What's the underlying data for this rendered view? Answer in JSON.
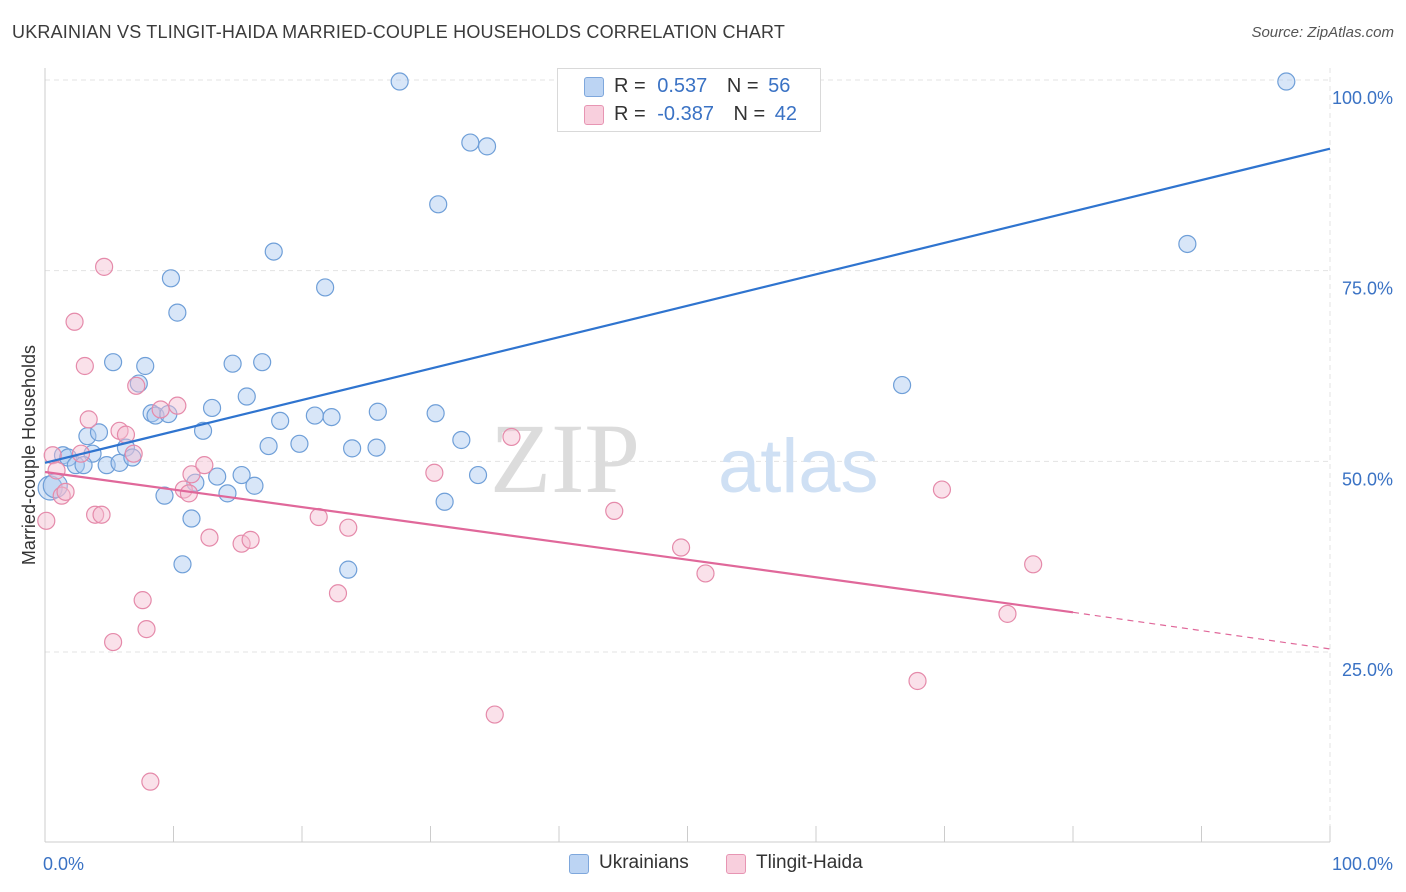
{
  "header": {
    "title": "UKRAINIAN VS TLINGIT-HAIDA MARRIED-COUPLE HOUSEHOLDS CORRELATION CHART",
    "source": "Source: ZipAtlas.com"
  },
  "watermark": {
    "part1": "ZIP",
    "part2": "atlas"
  },
  "colors": {
    "ukrainians_fill": "#a9c8f0",
    "ukrainians_stroke": "#6f9fd8",
    "ukrainians_line": "#2f74cf",
    "tlingit_fill": "#f4bcd0",
    "tlingit_stroke": "#e58aaa",
    "tlingit_line": "#e0689a",
    "axis_label": "#3a72c4",
    "grid": "#e3e3e3"
  },
  "legend": {
    "rows": [
      {
        "r_label": "R =",
        "r_value": "0.537",
        "n_label": "N =",
        "n_value": "56"
      },
      {
        "r_label": "R =",
        "r_value": "-0.387",
        "n_label": "N =",
        "n_value": "42"
      }
    ]
  },
  "bottom_legend": {
    "items": [
      "Ukrainians",
      "Tlingit-Haida"
    ]
  },
  "chart_data": {
    "type": "scatter",
    "title": "UKRAINIAN VS TLINGIT-HAIDA MARRIED-COUPLE HOUSEHOLDS CORRELATION CHART",
    "xlabel": "",
    "ylabel": "Married-couple Households",
    "xlim": [
      0,
      100
    ],
    "ylim": [
      0,
      102
    ],
    "x_tick_labels": [
      "0.0%",
      "100.0%"
    ],
    "y_ticks": [
      25,
      50,
      75,
      100
    ],
    "y_tick_labels": [
      "25.0%",
      "50.0%",
      "75.0%",
      "100.0%"
    ],
    "grid": true,
    "series": [
      {
        "name": "Ukrainians",
        "r": 0.537,
        "n": 56,
        "trend": {
          "x0": 0,
          "y0": 49.8,
          "x1": 100,
          "y1": 91
        },
        "points": [
          [
            0.4,
            46.5
          ],
          [
            0.8,
            46.8
          ],
          [
            1.4,
            50.8
          ],
          [
            1.8,
            50.5
          ],
          [
            2.4,
            49.5
          ],
          [
            3.3,
            53.3
          ],
          [
            3.7,
            51.0
          ],
          [
            4.2,
            53.8
          ],
          [
            4.8,
            49.5
          ],
          [
            5.3,
            63.0
          ],
          [
            5.8,
            49.8
          ],
          [
            6.3,
            51.8
          ],
          [
            6.8,
            50.5
          ],
          [
            7.3,
            60.2
          ],
          [
            7.8,
            62.5
          ],
          [
            8.3,
            56.3
          ],
          [
            8.6,
            56.0
          ],
          [
            9.3,
            45.5
          ],
          [
            9.8,
            74.0
          ],
          [
            10.3,
            69.5
          ],
          [
            10.7,
            36.5
          ],
          [
            11.4,
            42.5
          ],
          [
            11.7,
            47.2
          ],
          [
            12.3,
            54.0
          ],
          [
            13.0,
            57.0
          ],
          [
            13.4,
            48.0
          ],
          [
            14.2,
            45.8
          ],
          [
            14.6,
            62.8
          ],
          [
            15.3,
            48.2
          ],
          [
            15.7,
            58.5
          ],
          [
            16.3,
            46.8
          ],
          [
            16.9,
            63.0
          ],
          [
            17.4,
            52.0
          ],
          [
            17.8,
            77.5
          ],
          [
            18.3,
            55.3
          ],
          [
            19.8,
            52.3
          ],
          [
            21.0,
            56.0
          ],
          [
            21.8,
            72.8
          ],
          [
            22.3,
            55.8
          ],
          [
            23.6,
            35.8
          ],
          [
            23.9,
            51.7
          ],
          [
            25.8,
            51.8
          ],
          [
            25.9,
            56.5
          ],
          [
            27.6,
            99.8
          ],
          [
            30.4,
            56.3
          ],
          [
            30.6,
            83.7
          ],
          [
            31.1,
            44.7
          ],
          [
            32.4,
            52.8
          ],
          [
            33.1,
            91.8
          ],
          [
            33.7,
            48.2
          ],
          [
            34.4,
            91.3
          ],
          [
            66.7,
            60.0
          ],
          [
            88.9,
            78.5
          ],
          [
            96.6,
            99.8
          ],
          [
            3.0,
            49.5
          ],
          [
            9.6,
            56.2
          ]
        ]
      },
      {
        "name": "Tlingit-Haida",
        "r": -0.387,
        "n": 42,
        "trend": {
          "x0": 0,
          "y0": 48.6,
          "x1": 80,
          "y1": 30.2,
          "dash_x1": 100,
          "dash_y1": 25.4
        },
        "points": [
          [
            0.1,
            42.2
          ],
          [
            0.6,
            50.8
          ],
          [
            0.9,
            48.8
          ],
          [
            1.3,
            45.5
          ],
          [
            2.3,
            68.3
          ],
          [
            2.8,
            51.0
          ],
          [
            3.1,
            62.5
          ],
          [
            3.4,
            55.5
          ],
          [
            3.9,
            43.0
          ],
          [
            4.4,
            43.0
          ],
          [
            4.6,
            75.5
          ],
          [
            5.3,
            26.3
          ],
          [
            5.8,
            54.0
          ],
          [
            6.3,
            53.5
          ],
          [
            6.9,
            51.0
          ],
          [
            7.1,
            59.9
          ],
          [
            7.6,
            31.8
          ],
          [
            7.9,
            28.0
          ],
          [
            8.2,
            8.0
          ],
          [
            9.0,
            56.8
          ],
          [
            10.3,
            57.3
          ],
          [
            10.8,
            46.3
          ],
          [
            11.2,
            45.8
          ],
          [
            11.4,
            48.3
          ],
          [
            12.4,
            49.5
          ],
          [
            12.8,
            40.0
          ],
          [
            15.3,
            39.2
          ],
          [
            16.0,
            39.7
          ],
          [
            21.3,
            42.7
          ],
          [
            22.8,
            32.7
          ],
          [
            23.6,
            41.3
          ],
          [
            30.3,
            48.5
          ],
          [
            35.0,
            16.8
          ],
          [
            36.3,
            53.2
          ],
          [
            44.3,
            43.5
          ],
          [
            49.5,
            38.7
          ],
          [
            51.4,
            35.3
          ],
          [
            67.9,
            21.2
          ],
          [
            69.8,
            46.3
          ],
          [
            74.9,
            30.0
          ],
          [
            76.9,
            36.5
          ],
          [
            1.6,
            46.0
          ]
        ]
      }
    ]
  }
}
